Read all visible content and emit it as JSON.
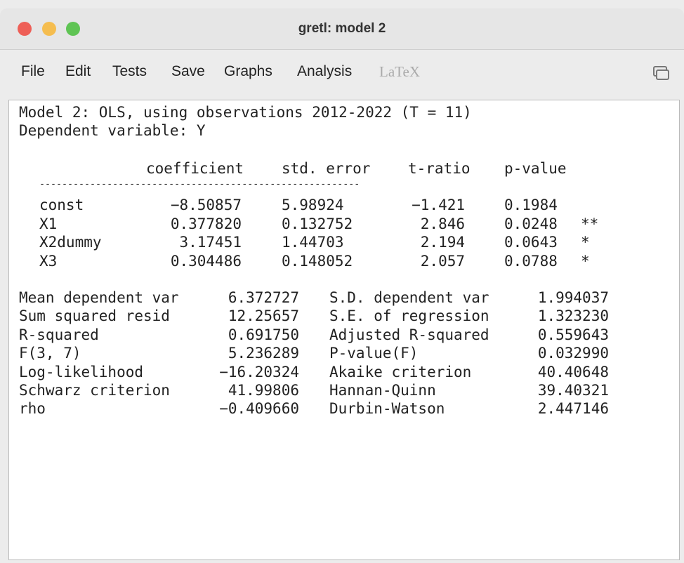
{
  "window": {
    "title": "gretl: model 2"
  },
  "menu": [
    "File",
    "Edit",
    "Tests",
    "Save",
    "Graphs",
    "Analysis",
    "LaTeX"
  ],
  "output": {
    "heading": [
      "Model 2: OLS, using observations 2012-2022 (T = 11)",
      "Dependent variable: Y"
    ],
    "coef_header": [
      "coefficient",
      "std. error",
      "t-ratio",
      "p-value"
    ],
    "separator": "---------------------------------------------------------",
    "coef_rows": [
      {
        "name": "const",
        "coefficient": "−8.50857",
        "std_error": "5.98924",
        "t_ratio": "−1.421",
        "p_value": "0.1984"
      },
      {
        "name": "X1",
        "coefficient": "0.377820",
        "std_error": "0.132752",
        "t_ratio": "2.846",
        "p_value": "0.0248",
        "stars": "**"
      },
      {
        "name": "X2dummy",
        "coefficient": "3.17451",
        "std_error": "1.44703",
        "t_ratio": "2.194",
        "p_value": "0.0643",
        "stars": "*"
      },
      {
        "name": "X3",
        "coefficient": "0.304486",
        "std_error": "0.148052",
        "t_ratio": "2.057",
        "p_value": "0.0788",
        "stars": "*"
      }
    ],
    "stats": [
      [
        "Mean dependent var",
        "6.372727",
        "S.D. dependent var",
        "1.994037"
      ],
      [
        "Sum squared resid",
        "12.25657",
        "S.E. of regression",
        "1.323230"
      ],
      [
        "R-squared",
        "0.691750",
        "Adjusted R-squared",
        "0.559643"
      ],
      [
        "F(3, 7)",
        "5.236289",
        "P-value(F)",
        "0.032990"
      ],
      [
        "Log-likelihood",
        "−16.20324",
        "Akaike criterion",
        "40.40648"
      ],
      [
        "Schwarz criterion",
        "41.99806",
        "Hannan-Quinn",
        "39.40321"
      ],
      [
        "rho",
        "−0.409660",
        "Durbin-Watson",
        "2.447146"
      ]
    ]
  }
}
